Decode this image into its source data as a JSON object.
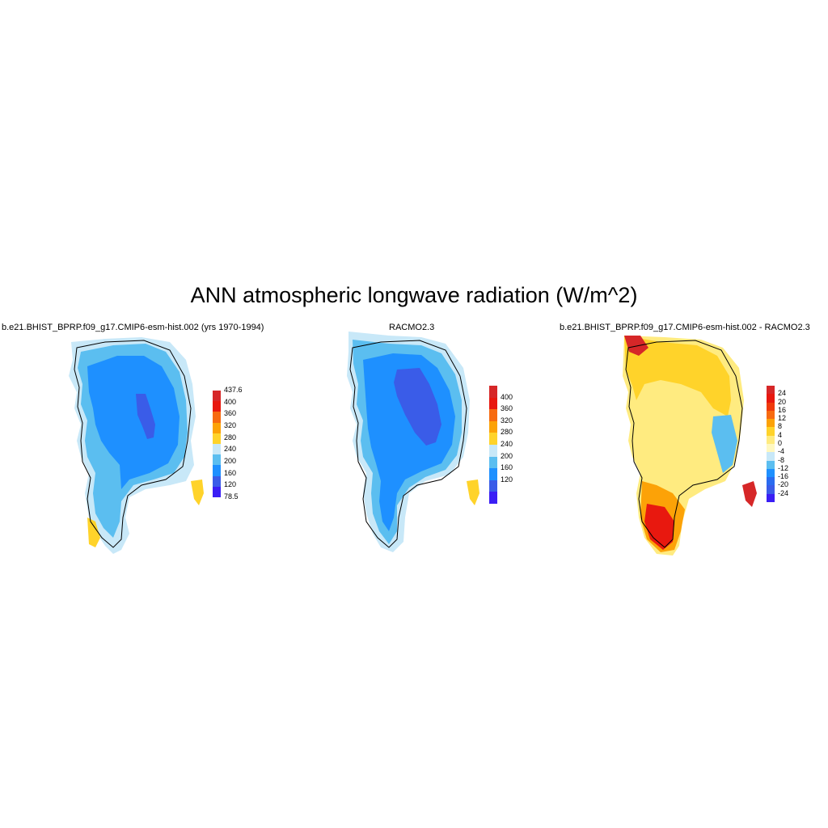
{
  "title": "ANN atmospheric longwave radiation (W/m^2)",
  "panels": [
    {
      "title": "b.e21.BHIST_BPRP.f09_g17.CMIP6-esm-hist.002 (yrs 1970-1994)",
      "colorbar": {
        "labels": [
          "437.6",
          "400",
          "360",
          "320",
          "280",
          "240",
          "200",
          "160",
          "120",
          "78.5"
        ],
        "colors": [
          "#d62728",
          "#e8180f",
          "#f76a10",
          "#fca207",
          "#ffd32a",
          "#c8e8f8",
          "#5bbef0",
          "#1e90ff",
          "#3a5ce8",
          "#3a1ef5"
        ]
      }
    },
    {
      "title": "RACMO2.3",
      "colorbar": {
        "labels": [
          "400",
          "360",
          "320",
          "280",
          "240",
          "200",
          "160",
          "120"
        ],
        "colors": [
          "#d62728",
          "#e8180f",
          "#f76a10",
          "#fca207",
          "#ffd32a",
          "#c8e8f8",
          "#5bbef0",
          "#1e90ff",
          "#3a5ce8",
          "#3a1ef5"
        ]
      }
    },
    {
      "title": "b.e21.BHIST_BPRP.f09_g17.CMIP6-esm-hist.002 - RACMO2.3",
      "colorbar": {
        "labels": [
          "24",
          "20",
          "16",
          "12",
          "8",
          "4",
          "0",
          "-4",
          "-8",
          "-12",
          "-16",
          "-20",
          "-24"
        ],
        "colors": [
          "#d62728",
          "#e8180f",
          "#f03a0c",
          "#f76a10",
          "#fca207",
          "#ffd32a",
          "#ffeb80",
          "#fff8c0",
          "#c8e8f8",
          "#5bbef0",
          "#1e90ff",
          "#2a6cf0",
          "#3a5ce8",
          "#3a1ef5"
        ]
      }
    }
  ]
}
